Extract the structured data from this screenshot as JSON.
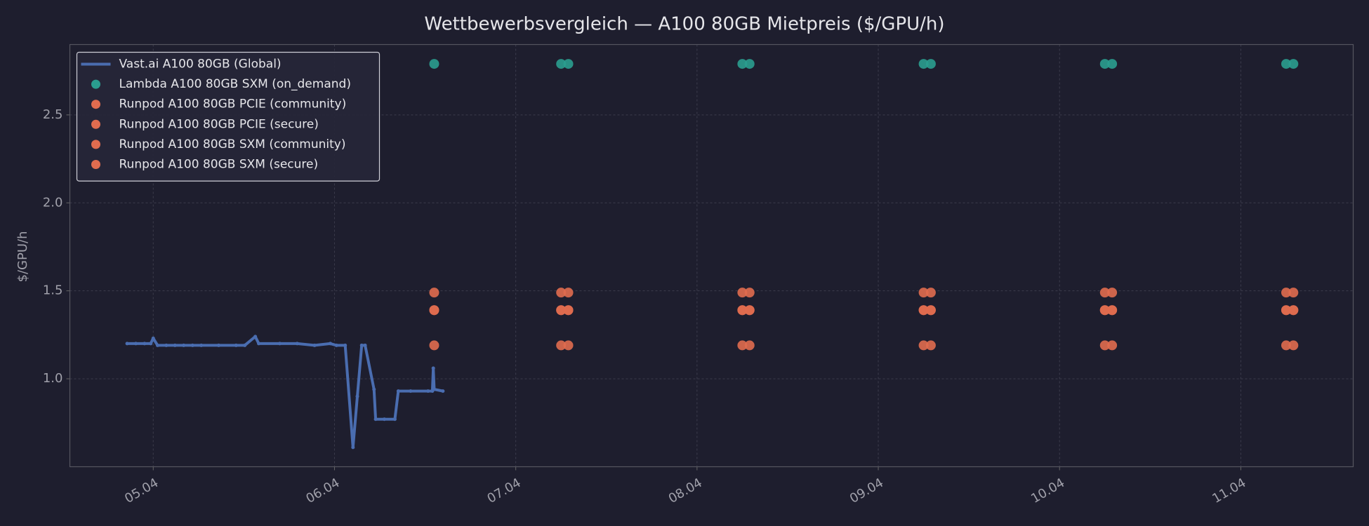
{
  "chart_data": {
    "type": "line",
    "title": "Wettbewerbsvergleich — A100 80GB Mietpreis ($/GPU/h)",
    "y_label": "$/GPU/h",
    "xlim": [
      4.54,
      11.62
    ],
    "xticks": [
      {
        "value": 5,
        "label": "05.04"
      },
      {
        "value": 6,
        "label": "06.04"
      },
      {
        "value": 7,
        "label": "07.04"
      },
      {
        "value": 8,
        "label": "08.04"
      },
      {
        "value": 9,
        "label": "09.04"
      },
      {
        "value": 10,
        "label": "10.04"
      },
      {
        "value": 11,
        "label": "11.04"
      }
    ],
    "ylim": [
      0.5,
      2.9
    ],
    "yticks": [
      {
        "value": 1,
        "label": "1.0"
      },
      {
        "value": 1.5,
        "label": "1.5"
      },
      {
        "value": 2,
        "label": "2.0"
      },
      {
        "value": 2.5,
        "label": "2.5"
      }
    ],
    "grid": true,
    "legend": "upper left",
    "series": [
      {
        "name": "Vast.ai A100 80GB (Global)",
        "type": "line",
        "color": "#4a6db0",
        "x": [
          4.856,
          4.904,
          4.952,
          4.986,
          5.0,
          5.024,
          5.072,
          5.12,
          5.168,
          5.217,
          5.265,
          5.361,
          5.457,
          5.505,
          5.563,
          5.582,
          5.698,
          5.794,
          5.89,
          5.977,
          6.011,
          6.059,
          6.102,
          6.126,
          6.15,
          6.169,
          6.218,
          6.227,
          6.275,
          6.333,
          6.352,
          6.42,
          6.516,
          6.54,
          6.545,
          6.55,
          6.598
        ],
        "values": [
          1.2,
          1.2,
          1.2,
          1.2,
          1.23,
          1.19,
          1.19,
          1.19,
          1.19,
          1.19,
          1.19,
          1.19,
          1.19,
          1.19,
          1.24,
          1.2,
          1.2,
          1.2,
          1.19,
          1.2,
          1.19,
          1.19,
          0.61,
          0.9,
          1.19,
          1.19,
          0.94,
          0.77,
          0.77,
          0.77,
          0.93,
          0.93,
          0.93,
          0.93,
          1.06,
          0.94,
          0.93
        ]
      },
      {
        "name": "Lambda A100 80GB SXM (on_demand)",
        "type": "scatter",
        "color": "#2a9d8f",
        "x": [
          6.55,
          7.25,
          7.29,
          8.25,
          8.29,
          9.25,
          9.29,
          10.25,
          10.29,
          11.25,
          11.29
        ],
        "values": [
          2.79,
          2.79,
          2.79,
          2.79,
          2.79,
          2.79,
          2.79,
          2.79,
          2.79,
          2.79,
          2.79
        ]
      },
      {
        "name": "Runpod A100 80GB PCIE (community)",
        "type": "scatter",
        "color": "#e06c4f",
        "x": [
          6.55,
          7.25,
          7.29,
          8.25,
          8.29,
          9.25,
          9.29,
          10.25,
          10.29,
          11.25,
          11.29
        ],
        "values": [
          1.19,
          1.19,
          1.19,
          1.19,
          1.19,
          1.19,
          1.19,
          1.19,
          1.19,
          1.19,
          1.19
        ]
      },
      {
        "name": "Runpod A100 80GB PCIE (secure)",
        "type": "scatter",
        "color": "#e06c4f",
        "x": [
          6.55,
          7.25,
          7.29,
          8.25,
          8.29,
          9.25,
          9.29,
          10.25,
          10.29,
          11.25,
          11.29
        ],
        "values": [
          1.39,
          1.39,
          1.39,
          1.39,
          1.39,
          1.39,
          1.39,
          1.39,
          1.39,
          1.39,
          1.39
        ]
      },
      {
        "name": "Runpod A100 80GB SXM (community)",
        "type": "scatter",
        "color": "#e06c4f",
        "x": [
          6.55,
          7.25,
          7.29,
          8.25,
          8.29,
          9.25,
          9.29,
          10.25,
          10.29,
          11.25,
          11.29
        ],
        "values": [
          1.39,
          1.39,
          1.39,
          1.39,
          1.39,
          1.39,
          1.39,
          1.39,
          1.39,
          1.39,
          1.39
        ]
      },
      {
        "name": "Runpod A100 80GB SXM (secure)",
        "type": "scatter",
        "color": "#e06c4f",
        "x": [
          6.55,
          7.25,
          7.29,
          8.25,
          8.29,
          9.25,
          9.29,
          10.25,
          10.29,
          11.25,
          11.29
        ],
        "values": [
          1.49,
          1.49,
          1.49,
          1.49,
          1.49,
          1.49,
          1.49,
          1.49,
          1.49,
          1.49,
          1.49
        ]
      }
    ]
  }
}
